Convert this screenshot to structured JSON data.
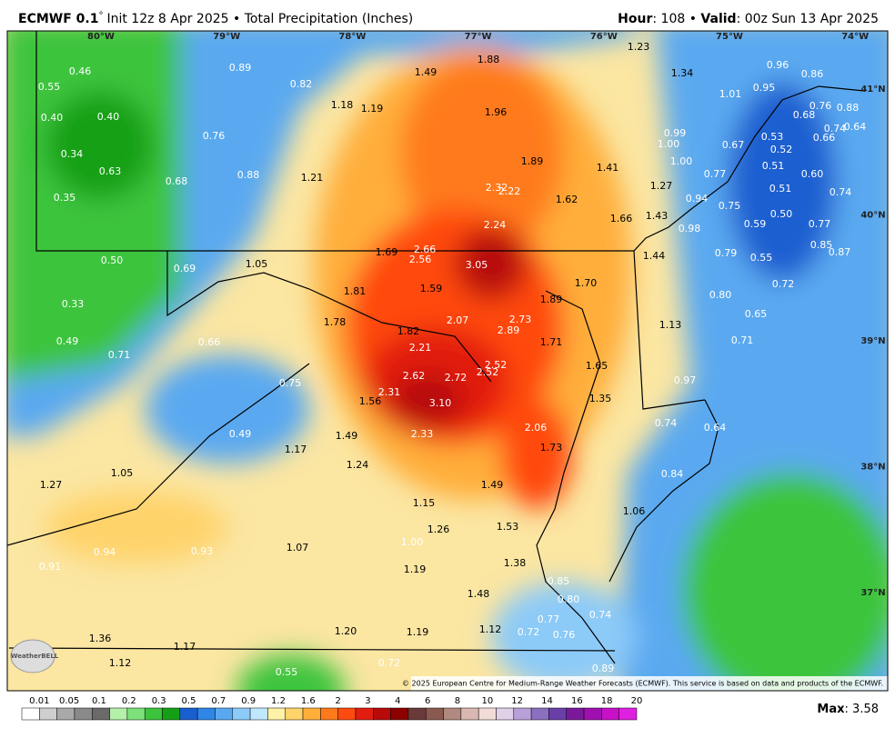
{
  "header": {
    "model": "ECMWF 0.1",
    "degree": "°",
    "init": "Init 12z 8 Apr 2025 • Total Precipitation (Inches)",
    "hour_label": "Hour",
    "hour_value": ": 108 • ",
    "valid_label": "Valid",
    "valid_value": ": 00z Sun 13 Apr 2025"
  },
  "map": {
    "longitudes": [
      "80°W",
      "79°W",
      "78°W",
      "77°W",
      "76°W",
      "75°W",
      "74°W"
    ],
    "latitudes": [
      "41°N",
      "40°N",
      "39°N",
      "38°N",
      "37°N"
    ],
    "labels": [
      "0.46",
      "0.55",
      "0.40",
      "0.40",
      "0.34",
      "0.63",
      "0.35",
      "0.89",
      "0.82",
      "1.18",
      "1.19",
      "0.76",
      "0.68",
      "0.88",
      "1.21",
      "1.49",
      "1.88",
      "1.96",
      "1.89",
      "2.32",
      "2.22",
      "2.24",
      "1.62",
      "1.41",
      "1.23",
      "1.34",
      "0.96",
      "0.86",
      "1.01",
      "0.95",
      "0.76",
      "0.88",
      "0.68",
      "0.99",
      "1.00",
      "0.67",
      "0.53",
      "0.52",
      "0.74",
      "0.64",
      "0.66",
      "1.00",
      "0.77",
      "0.51",
      "0.60",
      "1.27",
      "0.94",
      "0.75",
      "0.51",
      "0.74",
      "1.66",
      "1.43",
      "0.98",
      "0.59",
      "0.50",
      "0.77",
      "0.85",
      "0.87",
      "0.50",
      "0.69",
      "1.05",
      "1.69",
      "2.66",
      "2.56",
      "3.05",
      "1.44",
      "0.79",
      "0.55",
      "0.33",
      "1.81",
      "1.59",
      "1.70",
      "1.89",
      "0.72",
      "0.80",
      "0.65",
      "1.78",
      "2.07",
      "2.73",
      "2.89",
      "1.82",
      "1.13",
      "0.71",
      "0.49",
      "0.71",
      "0.66",
      "2.21",
      "1.71",
      "2.52",
      "2.52",
      "1.65",
      "2.62",
      "2.72",
      "0.75",
      "2.31",
      "1.56",
      "3.10",
      "1.35",
      "0.97",
      "0.49",
      "1.49",
      "2.33",
      "2.06",
      "0.74",
      "0.64",
      "1.17",
      "1.73",
      "1.05",
      "1.24",
      "0.84",
      "1.27",
      "1.49",
      "1.15",
      "1.06",
      "1.26",
      "1.53",
      "0.94",
      "0.93",
      "1.07",
      "1.00",
      "0.91",
      "1.19",
      "1.38",
      "0.85",
      "1.48",
      "0.80",
      "0.77",
      "0.74",
      "1.20",
      "1.19",
      "1.12",
      "0.72",
      "0.76",
      "1.36",
      "1.17",
      "0.72",
      "1.12",
      "0.55",
      "0.89"
    ],
    "logo": "WeatherBELL",
    "copyright": "© 2025 European Centre for Medium-Range Weather Forecasts (ECMWF). This service is based on data and products of the ECMWF."
  },
  "legend": {
    "labels": [
      "0.01",
      "0.05",
      "0.1",
      "0.2",
      "0.3",
      "0.5",
      "0.7",
      "0.9",
      "1.2",
      "1.6",
      "2",
      "3",
      "4",
      "6",
      "8",
      "10",
      "12",
      "14",
      "16",
      "18",
      "20"
    ],
    "colors": [
      "#ffffff",
      "#cfcfcf",
      "#a9a9a9",
      "#8a8a8a",
      "#6a6a6a",
      "#b4f0a8",
      "#7ee07a",
      "#3cc43c",
      "#14a014",
      "#1a5fd0",
      "#2f86e6",
      "#5aa9f0",
      "#8ccaf8",
      "#bfe8ff",
      "#fff2a8",
      "#ffd36a",
      "#ffae3a",
      "#ff7a1a",
      "#ff4a10",
      "#e21d10",
      "#b80a0a",
      "#8c0000",
      "#6a3a3a",
      "#8a5a50",
      "#b08a80",
      "#d8b8b0",
      "#f2dcd8",
      "#e0d0e8",
      "#b8a0d8",
      "#8c70c0",
      "#6a40a8",
      "#7a1a9a",
      "#a010b0",
      "#c810c8",
      "#e020e0"
    ],
    "max_label": "Max",
    "max_value": ": 3.58"
  }
}
